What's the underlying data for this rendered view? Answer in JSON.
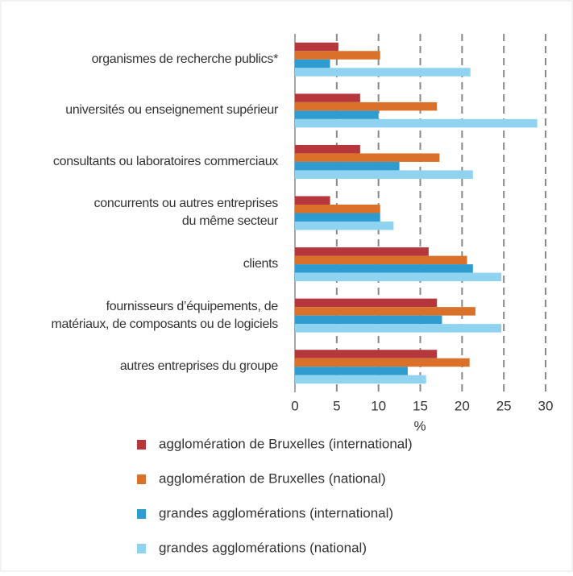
{
  "chart_data": {
    "type": "hbar",
    "categories": [
      "organismes de recherche publics*",
      "universités ou enseignement supérieur",
      "consultants ou laboratoires commerciaux",
      "concurrents ou autres entreprises\ndu même secteur",
      "clients",
      "fournisseurs d’équipements, de\nmatériaux, de composants ou de logiciels",
      "autres entreprises du groupe"
    ],
    "series": [
      {
        "name": "agglomération de Bruxelles (international)",
        "color": "#b5363b",
        "values": [
          5.2,
          7.8,
          7.8,
          4.2,
          16,
          17,
          17
        ]
      },
      {
        "name": "agglomération de Bruxelles (national)",
        "color": "#d9712a",
        "values": [
          10.2,
          17,
          17.3,
          10.2,
          20.6,
          21.6,
          20.9
        ]
      },
      {
        "name": "grandes agglomérations (international)",
        "color": "#2f9ccf",
        "values": [
          4.2,
          10,
          12.5,
          10.2,
          21.3,
          17.6,
          13.5
        ]
      },
      {
        "name": "grandes agglomérations (national)",
        "color": "#8fd3f0",
        "values": [
          21,
          29,
          21.3,
          11.8,
          24.7,
          24.7,
          15.7
        ]
      }
    ],
    "xlabel": "%",
    "xlim": [
      0,
      30
    ],
    "xticks": [
      0,
      5,
      10,
      15,
      20,
      25,
      30
    ],
    "grid": true
  }
}
